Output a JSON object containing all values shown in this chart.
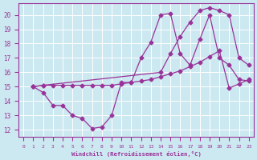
{
  "xlabel": "Windchill (Refroidissement éolien,°C)",
  "bg_color": "#cce8f0",
  "grid_color": "#ffffff",
  "line_color": "#993399",
  "xlim": [
    -0.5,
    23.5
  ],
  "ylim": [
    11.5,
    20.8
  ],
  "xticks": [
    0,
    1,
    2,
    3,
    4,
    5,
    6,
    7,
    8,
    9,
    10,
    11,
    12,
    13,
    14,
    15,
    16,
    17,
    18,
    19,
    20,
    21,
    22,
    23
  ],
  "yticks": [
    12,
    13,
    14,
    15,
    16,
    17,
    18,
    19,
    20
  ],
  "line1_x": [
    1,
    2,
    3,
    4,
    5,
    6,
    7,
    8,
    9,
    10,
    11,
    12,
    13,
    14,
    15,
    16,
    17,
    18,
    19,
    20,
    21,
    22,
    23
  ],
  "line1_y": [
    15.0,
    14.6,
    13.7,
    13.7,
    13.0,
    12.8,
    12.1,
    12.2,
    13.0,
    15.3,
    15.3,
    17.0,
    18.1,
    20.0,
    20.1,
    17.3,
    16.5,
    18.3,
    20.0,
    17.0,
    16.5,
    15.5,
    15.4
  ],
  "line2_x": [
    1,
    2,
    14,
    15,
    16,
    17,
    18,
    19,
    20,
    21,
    22,
    23
  ],
  "line2_y": [
    15.0,
    15.1,
    16.0,
    17.3,
    18.5,
    19.5,
    20.3,
    20.5,
    20.3,
    20.0,
    17.0,
    16.5
  ],
  "line3_x": [
    1,
    2,
    3,
    4,
    5,
    6,
    7,
    8,
    9,
    10,
    11,
    12,
    13,
    14,
    15,
    16,
    17,
    18,
    19,
    20,
    21,
    22,
    23
  ],
  "line3_y": [
    15.0,
    15.1,
    15.1,
    15.1,
    15.1,
    15.1,
    15.1,
    15.1,
    15.1,
    15.2,
    15.3,
    15.4,
    15.5,
    15.7,
    15.9,
    16.1,
    16.4,
    16.7,
    17.1,
    17.5,
    14.9,
    15.2,
    15.5
  ],
  "marker": "D",
  "markersize": 2.5,
  "linewidth": 0.9
}
